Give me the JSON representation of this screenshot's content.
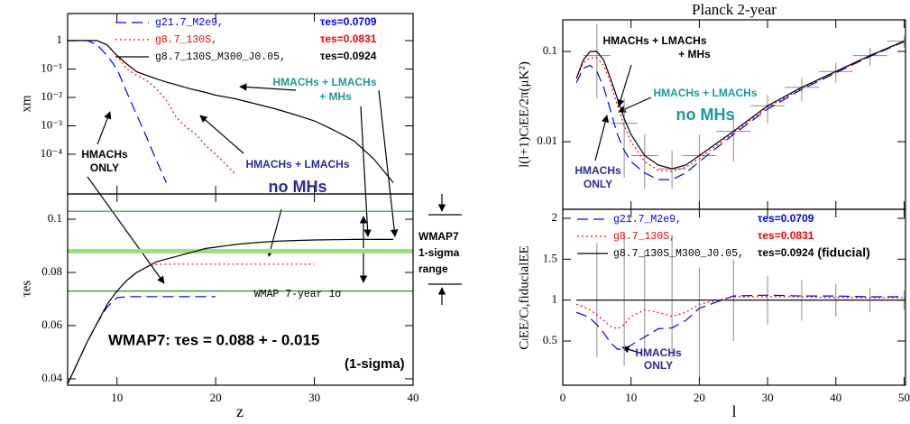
{
  "chart_data": [
    {
      "type": "line",
      "ylabel": "xm",
      "log_y": true,
      "xlim": [
        5,
        40
      ],
      "ylim": [
        4e-06,
        9
      ],
      "yticks": [
        1,
        {
          "value": 0.1,
          "label": "10⁻¹"
        },
        {
          "value": 0.01,
          "label": "10⁻²"
        },
        {
          "value": 0.001,
          "label": "10⁻³"
        },
        {
          "value": 0.0001,
          "label": "10⁻⁴"
        }
      ],
      "x": [
        5,
        6,
        7,
        8,
        9,
        10,
        11,
        12,
        13,
        14,
        15,
        16,
        17,
        18,
        19,
        20,
        22,
        24,
        26,
        28,
        30,
        32,
        34,
        36,
        38
      ],
      "series": [
        {
          "name": "g21.7_M2e9,",
          "legend_note": "τes=0.0709",
          "color": "#0000ff",
          "linestyle": "dashed",
          "values": [
            1,
            1,
            1,
            0.7,
            0.3,
            0.1,
            0.015,
            0.0024,
            0.0004,
            6e-05,
            1e-05,
            null,
            null,
            null,
            null,
            null,
            null,
            null,
            null,
            null,
            null,
            null,
            null,
            null,
            null
          ]
        },
        {
          "name": "g8.7_130S,",
          "legend_note": "τes=0.0831",
          "color": "#ff0000",
          "linestyle": "dotted",
          "values": [
            1,
            1,
            1,
            1,
            0.7,
            0.3,
            0.1,
            0.06,
            0.04,
            0.02,
            0.008,
            0.002,
            0.0009,
            0.0005,
            0.0002,
            0.0001,
            2e-05,
            null,
            null,
            null,
            null,
            null,
            null,
            null,
            null
          ]
        },
        {
          "name": "g8.7_130S_M300_J0.05,",
          "legend_note": "τes=0.0924",
          "color": "#000000",
          "linestyle": "solid",
          "values": [
            1,
            1,
            1,
            1,
            0.7,
            0.3,
            0.15,
            0.08,
            0.06,
            0.045,
            0.035,
            0.028,
            0.022,
            0.018,
            0.015,
            0.012,
            0.009,
            0.006,
            0.004,
            0.0025,
            0.0015,
            0.0007,
            0.0003,
            7e-05,
            1e-05
          ]
        }
      ],
      "annotations": [
        {
          "text": "HMACHs + LMACHs",
          "color": "#1a9a9a"
        },
        {
          "text": "+ MHs",
          "color": "#1a9a9a"
        },
        {
          "text": "HMACHs",
          "color": "#000000"
        },
        {
          "text": "ONLY",
          "color": "#000000"
        },
        {
          "text": "HMACHs + LMACHs",
          "color": "#2a2a9a"
        },
        {
          "text": "no MHs",
          "color": "#2a2a9a"
        }
      ]
    },
    {
      "type": "line",
      "xlabel": "z",
      "ylabel": "τes",
      "xlim": [
        5,
        40
      ],
      "ylim": [
        0.0376,
        0.1095
      ],
      "xticks": [
        10,
        20,
        30,
        40
      ],
      "yticks": [
        0.04,
        0.06,
        0.08,
        0.1
      ],
      "x": [
        5,
        6,
        7,
        8,
        9,
        10,
        11,
        12,
        13,
        14,
        15,
        16,
        17,
        18,
        19,
        20,
        22,
        24,
        26,
        28,
        30,
        32,
        34,
        36,
        38
      ],
      "series": [
        {
          "color": "#0000ff",
          "linestyle": "dashed",
          "values": [
            0.038,
            0.046,
            0.054,
            0.061,
            0.067,
            0.0705,
            0.0709,
            0.0709,
            0.0709,
            0.0709,
            0.0709,
            0.0709,
            0.0709,
            0.0709,
            0.0709,
            0.0709,
            null,
            null,
            null,
            null,
            null,
            null,
            null,
            null,
            null
          ]
        },
        {
          "color": "#ff0000",
          "linestyle": "dotted",
          "values": [
            0.038,
            0.046,
            0.054,
            0.061,
            0.068,
            0.073,
            0.077,
            0.08,
            0.082,
            0.083,
            0.0831,
            0.0831,
            0.0831,
            0.0831,
            0.0831,
            0.0831,
            0.0831,
            0.0831,
            0.0831,
            0.0831,
            0.0831,
            null,
            null,
            null,
            null
          ]
        },
        {
          "color": "#000000",
          "linestyle": "solid",
          "values": [
            0.038,
            0.046,
            0.054,
            0.061,
            0.068,
            0.073,
            0.077,
            0.08,
            0.082,
            0.084,
            0.085,
            0.086,
            0.087,
            0.088,
            0.089,
            0.0895,
            0.0905,
            0.0912,
            0.0917,
            0.092,
            0.0922,
            0.0923,
            0.0924,
            0.0924,
            0.0924
          ]
        }
      ],
      "hlines": [
        {
          "value": 0.103,
          "color": "#2e8b2e",
          "width": 1.2
        },
        {
          "value": 0.073,
          "color": "#2e8b2e",
          "width": 1.2
        },
        {
          "value": 0.088,
          "color": "#9be07a",
          "width": 5
        }
      ],
      "annotations": [
        {
          "text": "WMAP 7-year 1σ",
          "color": "#000000"
        },
        {
          "text": "WMAP7: τes = 0.088  + - 0.015",
          "color": "#000000"
        },
        {
          "text": "(1-sigma)",
          "color": "#000000"
        },
        {
          "text": "WMAP7",
          "color": "#000000"
        },
        {
          "text": "1-sigma",
          "color": "#000000"
        },
        {
          "text": "range",
          "color": "#000000"
        }
      ]
    },
    {
      "type": "line",
      "title": "Planck 2-year",
      "ylabel": "l(l+1)CₗEE/2π(μK²)",
      "log_y": true,
      "xlim": [
        0,
        50.2
      ],
      "ylim": [
        0.00178,
        0.224
      ],
      "yticks": [
        0.01,
        0.1
      ],
      "x": [
        2,
        3,
        4,
        5,
        6,
        7,
        8,
        9,
        10,
        12,
        14,
        16,
        18,
        20,
        25,
        30,
        35,
        40,
        45,
        50
      ],
      "series": [
        {
          "color": "#0000ff",
          "linestyle": "dashed",
          "values": [
            0.045,
            0.065,
            0.07,
            0.06,
            0.04,
            0.022,
            0.012,
            0.008,
            0.006,
            0.0045,
            0.0038,
            0.0038,
            0.0045,
            0.006,
            0.012,
            0.023,
            0.038,
            0.058,
            0.088,
            0.128
          ]
        },
        {
          "color": "#ff0000",
          "linestyle": "dotted",
          "values": [
            0.05,
            0.075,
            0.085,
            0.085,
            0.07,
            0.045,
            0.025,
            0.015,
            0.01,
            0.006,
            0.0048,
            0.0047,
            0.0052,
            0.0065,
            0.0125,
            0.024,
            0.039,
            0.059,
            0.089,
            0.129
          ]
        },
        {
          "color": "#000000",
          "linestyle": "solid",
          "values": [
            0.05,
            0.08,
            0.1,
            0.1,
            0.08,
            0.05,
            0.03,
            0.018,
            0.012,
            0.007,
            0.0055,
            0.005,
            0.0055,
            0.007,
            0.013,
            0.025,
            0.04,
            0.06,
            0.09,
            0.13
          ]
        }
      ],
      "error_bars": {
        "color": "#8a8a8a",
        "x": [
          5,
          9,
          12,
          16,
          20,
          25,
          30,
          35,
          40,
          45,
          50
        ],
        "xerr": [
          2,
          2,
          2,
          2,
          2.5,
          2.5,
          2.5,
          2.5,
          2.5,
          2.5,
          2.5
        ],
        "y": [
          0.09,
          0.016,
          0.007,
          0.005,
          0.007,
          0.013,
          0.025,
          0.04,
          0.06,
          0.09,
          0.13
        ],
        "low": [
          0.03,
          0.004,
          0.003,
          0.003,
          0.0018,
          0.006,
          0.016,
          0.028,
          0.045,
          0.07,
          0.11
        ],
        "high": [
          0.2,
          0.03,
          0.012,
          0.008,
          0.012,
          0.02,
          0.033,
          0.05,
          0.075,
          0.11,
          0.15
        ]
      },
      "annotations": [
        {
          "text": "HMACHs + LMACHs",
          "color": "#000000"
        },
        {
          "text": "+ MHs",
          "color": "#000000"
        },
        {
          "text": "HMACHs + LMACHs",
          "color": "#1a9a9a"
        },
        {
          "text": "no MHs",
          "color": "#1a9a9a"
        },
        {
          "text": "HMACHs",
          "color": "#2a2a9a"
        },
        {
          "text": "ONLY",
          "color": "#2a2a9a"
        }
      ]
    },
    {
      "type": "line",
      "xlabel": "l",
      "ylabel": "CₗEE/Cₗ,fiducialEE",
      "xlim": [
        0,
        50.2
      ],
      "ylim": [
        -0.04,
        2.11
      ],
      "xticks": [
        0,
        10,
        20,
        30,
        40,
        50
      ],
      "yticks": [
        0.5,
        1,
        1.5,
        2
      ],
      "x": [
        2,
        3,
        4,
        5,
        6,
        7,
        8,
        9,
        10,
        12,
        14,
        16,
        18,
        20,
        25,
        30,
        35,
        40,
        45,
        50
      ],
      "series": [
        {
          "name": "g21.7_M2e9,",
          "legend_note": "τes=0.0709",
          "color": "#0000ff",
          "linestyle": "dashed",
          "values": [
            0.85,
            0.82,
            0.78,
            0.7,
            0.6,
            0.48,
            0.4,
            0.4,
            0.45,
            0.55,
            0.65,
            0.66,
            0.75,
            0.9,
            1.05,
            1.06,
            1.05,
            1.05,
            1.04,
            1.04
          ]
        },
        {
          "name": "g8.7_130S,",
          "legend_note": "τes=0.0831",
          "color": "#ff0000",
          "linestyle": "dotted",
          "values": [
            0.95,
            0.92,
            0.88,
            0.82,
            0.75,
            0.68,
            0.65,
            0.7,
            0.8,
            0.88,
            0.85,
            0.8,
            0.85,
            0.95,
            1.04,
            1.04,
            1.04,
            1.03,
            1.03,
            1.03
          ]
        },
        {
          "name": "g8.7_130S_M300_J0.05,",
          "legend_note": "τes=0.0924",
          "legend_extra": "(fiducial)",
          "color": "#000000",
          "linestyle": "solid",
          "values": [
            1,
            1,
            1,
            1,
            1,
            1,
            1,
            1,
            1,
            1,
            1,
            1,
            1,
            1,
            1,
            1,
            1,
            1,
            1,
            1
          ]
        }
      ],
      "error_bars": {
        "color": "#8a8a8a",
        "x": [
          5,
          9,
          12,
          16,
          20,
          25,
          30,
          35,
          40,
          45,
          50
        ],
        "xerr": [
          2,
          2,
          2,
          2,
          2.5,
          2.5,
          2.5,
          2.5,
          2.5,
          2.5,
          2.5
        ],
        "y": [
          1,
          1,
          1,
          1,
          1,
          1,
          1,
          1,
          1,
          1,
          1
        ],
        "low": [
          0.3,
          0.2,
          0.4,
          0.3,
          0.0,
          0.5,
          0.7,
          0.75,
          0.8,
          0.85,
          0.88
        ],
        "high": [
          1.7,
          1.8,
          1.6,
          1.8,
          1.4,
          1.5,
          1.3,
          1.25,
          1.2,
          1.15,
          1.12
        ]
      },
      "annotations": [
        {
          "text": "HMACHs",
          "color": "#2a2a9a"
        },
        {
          "text": "ONLY",
          "color": "#2a2a9a"
        }
      ]
    }
  ]
}
